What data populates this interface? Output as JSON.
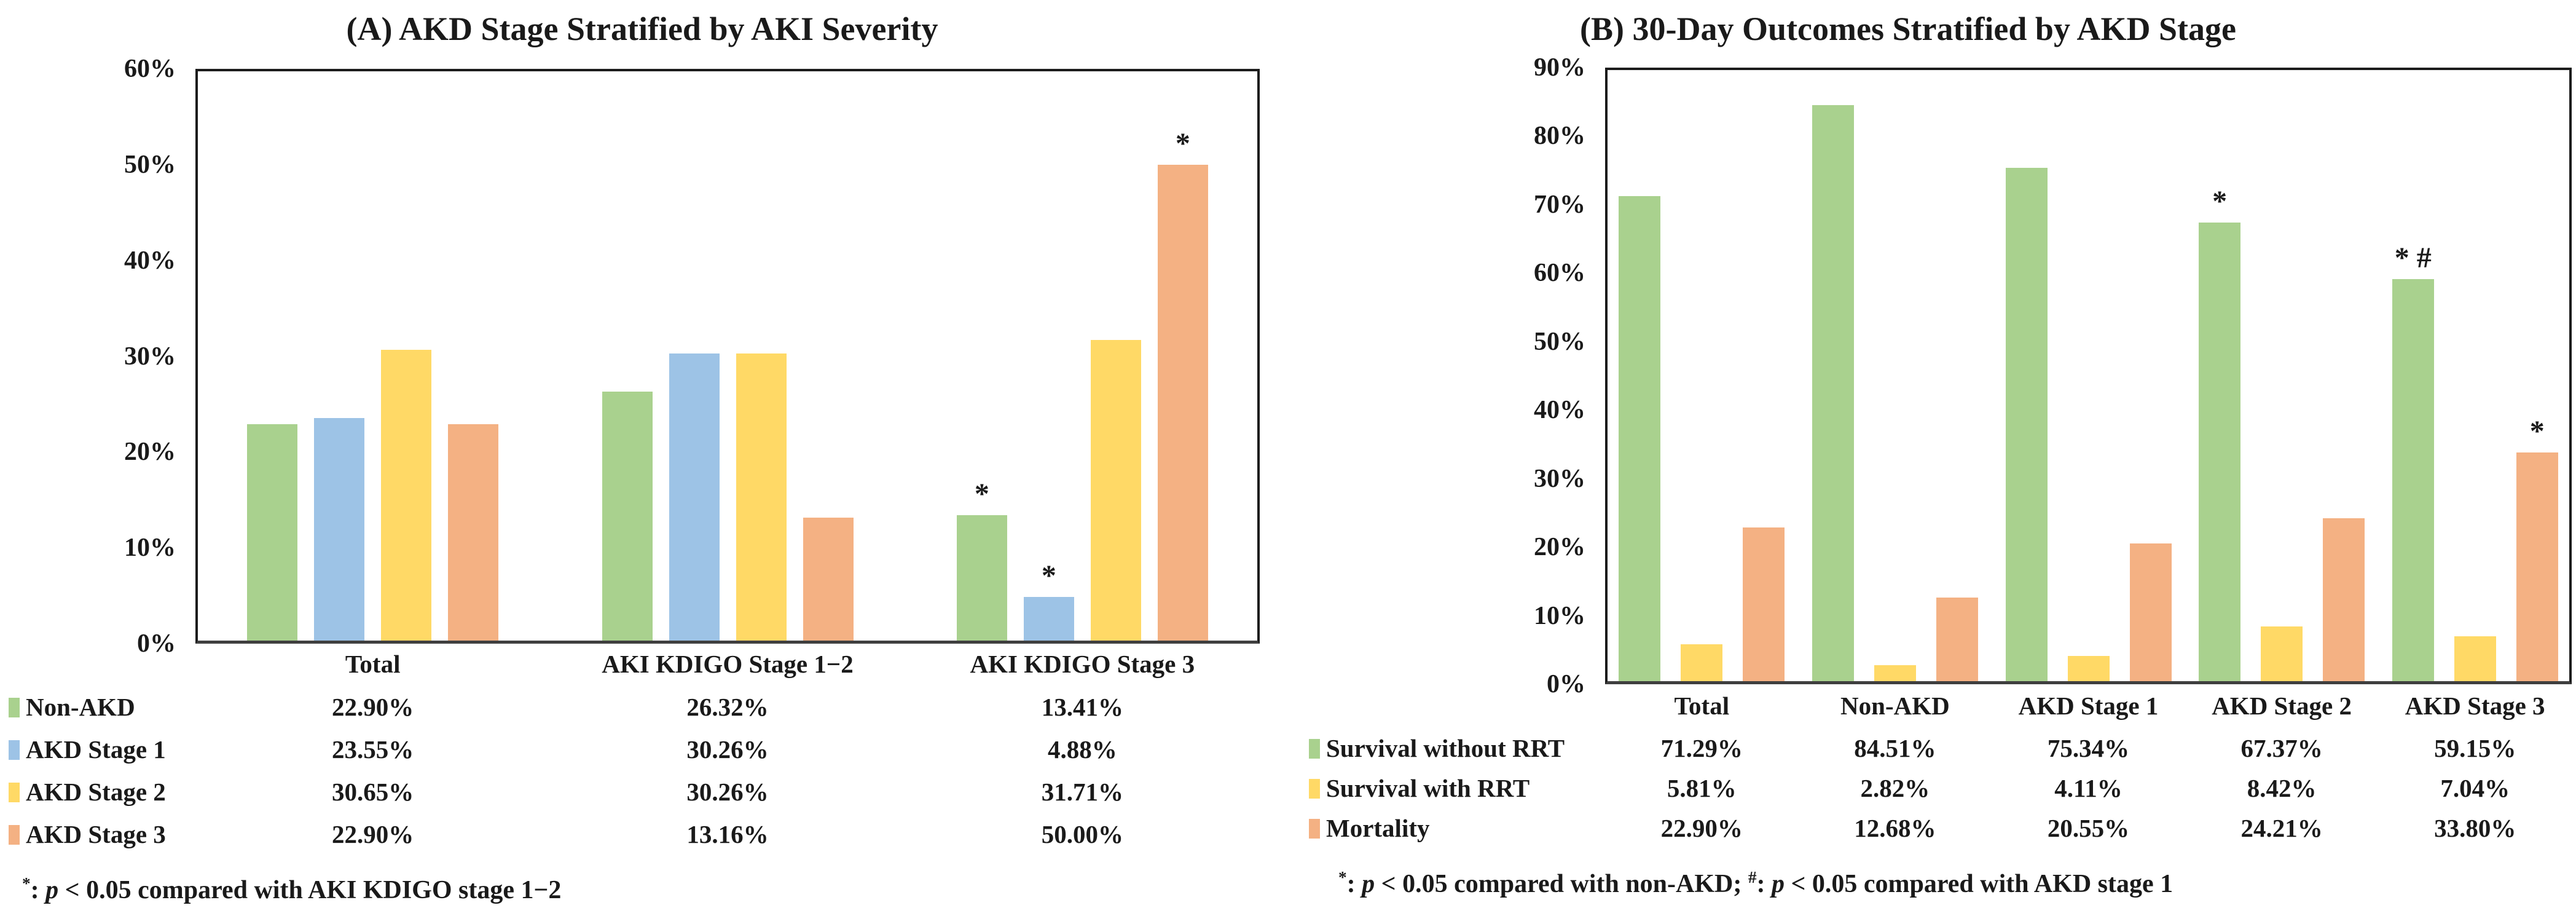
{
  "page": {
    "background": "#ffffff"
  },
  "chart_data": [
    {
      "type": "bar",
      "panel": "A",
      "title": "(A) AKD Stage Stratified by AKI Severity",
      "categories": [
        "Total",
        "AKI KDIGO Stage 1−2",
        "AKI KDIGO Stage 3"
      ],
      "series": [
        {
          "name": "Non-AKD",
          "color": "#a9d18e",
          "values": [
            22.9,
            26.32,
            13.41
          ],
          "display": [
            "22.90%",
            "26.32%",
            "13.41%"
          ]
        },
        {
          "name": "AKD Stage 1",
          "color": "#9dc3e6",
          "values": [
            23.55,
            30.26,
            4.88
          ],
          "display": [
            "23.55%",
            "30.26%",
            "4.88%"
          ]
        },
        {
          "name": "AKD Stage 2",
          "color": "#ffd966",
          "values": [
            30.65,
            30.26,
            31.71
          ],
          "display": [
            "30.65%",
            "30.26%",
            "31.71%"
          ]
        },
        {
          "name": "AKD Stage 3",
          "color": "#f4b183",
          "values": [
            22.9,
            13.16,
            50.0
          ],
          "display": [
            "22.90%",
            "13.16%",
            "50.00%"
          ]
        }
      ],
      "ylim": [
        0,
        60
      ],
      "ytick_step": 10,
      "ytick_labels": [
        "0%",
        "10%",
        "20%",
        "30%",
        "40%",
        "50%",
        "60%"
      ],
      "grid": false,
      "legend_position": "table-below-left",
      "annotations": [
        {
          "series_index": 0,
          "category_index": 2,
          "text": "*"
        },
        {
          "series_index": 1,
          "category_index": 2,
          "text": "*"
        },
        {
          "series_index": 3,
          "category_index": 2,
          "text": "*"
        }
      ],
      "footnote_segments": [
        {
          "text": "*",
          "style": "sup"
        },
        {
          "text": ": ",
          "style": "plain"
        },
        {
          "text": "p",
          "style": "italic"
        },
        {
          "text": " < 0.05 compared with AKI KDIGO stage 1−2",
          "style": "plain"
        }
      ]
    },
    {
      "type": "bar",
      "panel": "B",
      "title": "(B) 30-Day Outcomes Stratified by AKD Stage",
      "categories": [
        "Total",
        "Non-AKD",
        "AKD Stage 1",
        "AKD Stage 2",
        "AKD Stage 3"
      ],
      "series": [
        {
          "name": "Survival without RRT",
          "color": "#a9d18e",
          "values": [
            71.29,
            84.51,
            75.34,
            67.37,
            59.15
          ],
          "display": [
            "71.29%",
            "84.51%",
            "75.34%",
            "67.37%",
            "59.15%"
          ]
        },
        {
          "name": "Survival with RRT",
          "color": "#ffd966",
          "values": [
            5.81,
            2.82,
            4.11,
            8.42,
            7.04
          ],
          "display": [
            "5.81%",
            "2.82%",
            "4.11%",
            "8.42%",
            "7.04%"
          ]
        },
        {
          "name": "Mortality",
          "color": "#f4b183",
          "values": [
            22.9,
            12.68,
            20.55,
            24.21,
            33.8
          ],
          "display": [
            "22.90%",
            "12.68%",
            "20.55%",
            "24.21%",
            "33.80%"
          ]
        }
      ],
      "ylim": [
        0,
        90
      ],
      "ytick_step": 10,
      "ytick_labels": [
        "0%",
        "10%",
        "20%",
        "30%",
        "40%",
        "50%",
        "60%",
        "70%",
        "80%",
        "90%"
      ],
      "grid": false,
      "legend_position": "table-below-left",
      "annotations": [
        {
          "series_index": 0,
          "category_index": 3,
          "text": "*"
        },
        {
          "series_index": 0,
          "category_index": 4,
          "text": "* #"
        },
        {
          "series_index": 2,
          "category_index": 4,
          "text": "*"
        }
      ],
      "footnote_segments": [
        {
          "text": "*",
          "style": "sup"
        },
        {
          "text": ": ",
          "style": "plain"
        },
        {
          "text": "p",
          "style": "italic"
        },
        {
          "text": " < 0.05 compared with non-AKD; ",
          "style": "plain"
        },
        {
          "text": "#",
          "style": "sup"
        },
        {
          "text": ": ",
          "style": "plain"
        },
        {
          "text": "p",
          "style": "italic"
        },
        {
          "text": " < 0.05 compared with AKD stage 1",
          "style": "plain"
        }
      ]
    }
  ]
}
